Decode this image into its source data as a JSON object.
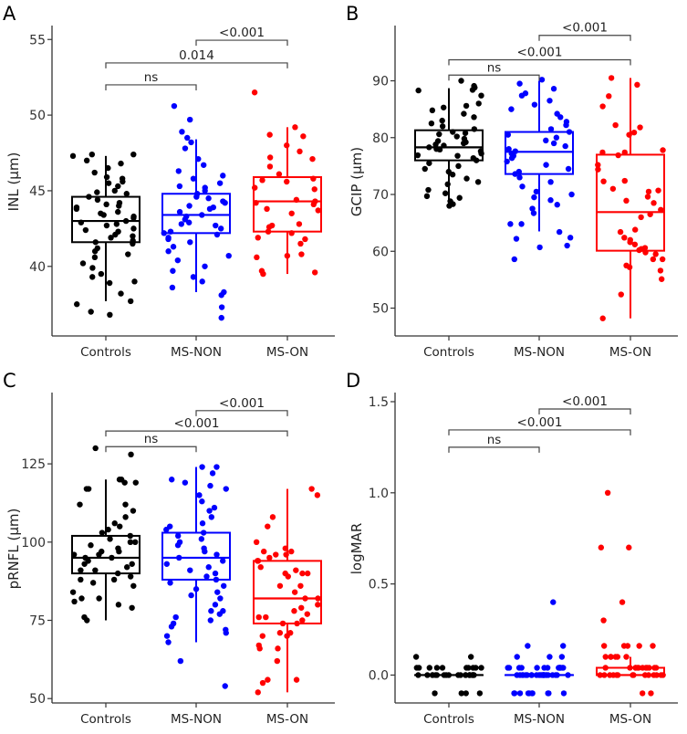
{
  "chart_data": [
    {
      "type": "box",
      "panel_label": "A",
      "ylabel": "INL (µm)",
      "ylim": [
        35.4,
        55.8
      ],
      "yticks": [
        40,
        45,
        50,
        55
      ],
      "tick_labels": [
        "40",
        "45",
        "50",
        "55"
      ],
      "grid": false,
      "categories": [
        "Controls",
        "MS-NON",
        "MS-ON"
      ],
      "colors": [
        "#000000",
        "#0000ff",
        "#ff0000"
      ],
      "boxes": [
        {
          "whisker_low": 37.7,
          "q1": 41.6,
          "median": 43.0,
          "q3": 44.6,
          "whisker_high": 47.3
        },
        {
          "whisker_low": 38.3,
          "q1": 42.2,
          "median": 43.4,
          "q3": 44.8,
          "whisker_high": 48.4
        },
        {
          "whisker_low": 39.5,
          "q1": 42.3,
          "median": 44.3,
          "q3": 45.9,
          "whisker_high": 49.2
        }
      ],
      "points": [
        [
          47.3,
          47.4,
          47.4,
          47.0,
          46.8,
          46.5,
          46.2,
          45.8,
          45.6,
          45.5,
          45.3,
          45.0,
          44.8,
          44.6,
          44.4,
          44.2,
          44.0,
          43.8,
          43.6,
          43.4,
          43.2,
          43.0,
          42.9,
          42.7,
          42.5,
          42.3,
          42.1,
          41.9,
          41.7,
          41.5,
          41.2,
          41.0,
          40.8,
          40.6,
          40.2,
          39.9,
          39.5,
          39.3,
          39.0,
          38.9,
          38.2,
          37.7,
          37.5,
          37.0,
          36.8,
          44.1,
          43.5,
          42.4,
          42.0,
          43.9,
          44.9,
          41.6,
          42.8,
          43.3,
          45.9
        ],
        [
          50.6,
          49.7,
          48.9,
          48.5,
          48.2,
          47.8,
          47.1,
          46.7,
          46.3,
          46.0,
          45.8,
          45.5,
          45.2,
          45.0,
          44.8,
          44.6,
          44.5,
          44.2,
          44.0,
          43.8,
          43.6,
          43.4,
          43.3,
          43.1,
          42.9,
          42.7,
          42.5,
          42.3,
          42.1,
          41.9,
          41.6,
          41.3,
          41.0,
          40.7,
          40.4,
          40.0,
          39.7,
          39.3,
          39.0,
          38.6,
          38.3,
          38.1,
          37.3,
          36.6,
          44.3,
          43.9,
          42.8,
          42.2,
          45.3,
          41.8
        ],
        [
          51.5,
          49.2,
          48.7,
          48.6,
          48.0,
          47.6,
          47.2,
          47.1,
          46.6,
          46.1,
          45.8,
          45.7,
          45.6,
          45.2,
          45.1,
          44.4,
          44.3,
          44.2,
          44.1,
          43.8,
          43.7,
          43.5,
          42.8,
          42.7,
          42.6,
          42.3,
          42.2,
          41.9,
          41.8,
          41.5,
          40.8,
          40.7,
          40.6,
          39.7,
          39.6,
          39.5
        ]
      ],
      "comparisons": [
        {
          "from": "Controls",
          "to": "MS-NON",
          "label": "ns",
          "y": 52.0
        },
        {
          "from": "Controls",
          "to": "MS-ON",
          "label": "0.014",
          "y": 53.45
        },
        {
          "from": "MS-NON",
          "to": "MS-ON",
          "label": "<0.001",
          "y": 54.95
        }
      ]
    },
    {
      "type": "box",
      "panel_label": "B",
      "ylabel": "GCIP (µm)",
      "ylim": [
        45.1,
        99.4
      ],
      "yticks": [
        50,
        60,
        70,
        80,
        90
      ],
      "tick_labels": [
        "50",
        "60",
        "70",
        "80",
        "90"
      ],
      "grid": false,
      "categories": [
        "Controls",
        "MS-NON",
        "MS-ON"
      ],
      "colors": [
        "#000000",
        "#0000ff",
        "#ff0000"
      ],
      "boxes": [
        {
          "whisker_low": 68.8,
          "q1": 76.0,
          "median": 78.3,
          "q3": 81.3,
          "whisker_high": 88.7
        },
        {
          "whisker_low": 63.5,
          "q1": 73.6,
          "median": 77.5,
          "q3": 81.0,
          "whisker_high": 90.0
        },
        {
          "whisker_low": 48.2,
          "q1": 60.1,
          "median": 66.9,
          "q3": 77.0,
          "whisker_high": 90.5
        }
      ],
      "points": [
        [
          90.0,
          88.8,
          88.3,
          89.1,
          88.4,
          87.4,
          86.0,
          85.6,
          85.3,
          84.8,
          84.2,
          83.6,
          83.0,
          82.5,
          82.0,
          81.5,
          81.0,
          80.6,
          80.2,
          79.8,
          79.4,
          79.0,
          78.6,
          78.3,
          78.0,
          77.6,
          77.2,
          76.8,
          76.4,
          76.0,
          75.5,
          75.0,
          74.5,
          74.0,
          73.5,
          72.8,
          72.2,
          71.8,
          70.8,
          70.2,
          69.7,
          69.4,
          68.8,
          68.3,
          68.0,
          79.2,
          77.9,
          80.8,
          76.9,
          78.8
        ],
        [
          90.2,
          89.5,
          88.6,
          87.8,
          87.4,
          86.5,
          85.8,
          85.0,
          84.2,
          83.6,
          82.8,
          82.2,
          81.5,
          81.0,
          80.5,
          80.0,
          79.5,
          79.0,
          78.5,
          78.0,
          77.6,
          77.2,
          76.8,
          76.4,
          75.8,
          75.2,
          74.5,
          74.0,
          73.6,
          73.0,
          72.2,
          71.4,
          70.5,
          70.0,
          69.5,
          69.0,
          68.2,
          67.5,
          66.7,
          64.8,
          64.8,
          63.4,
          62.4,
          62.2,
          61.0,
          60.7,
          58.6
        ],
        [
          90.5,
          89.3,
          87.3,
          85.5,
          82.2,
          81.8,
          80.9,
          80.5,
          77.8,
          77.4,
          77.4,
          76.9,
          75.2,
          74.4,
          72.4,
          72.3,
          71.0,
          70.7,
          70.5,
          69.6,
          68.9,
          68.5,
          67.3,
          66.5,
          66.0,
          63.8,
          63.4,
          62.4,
          62.0,
          61.6,
          61.2,
          60.6,
          60.4,
          60.2,
          59.8,
          59.5,
          58.6,
          58.6,
          57.5,
          57.2,
          56.6,
          55.1,
          52.4,
          48.2
        ]
      ],
      "comparisons": [
        {
          "from": "Controls",
          "to": "MS-NON",
          "label": "ns",
          "y": 91.0
        },
        {
          "from": "Controls",
          "to": "MS-ON",
          "label": "<0.001",
          "y": 93.7
        },
        {
          "from": "MS-NON",
          "to": "MS-ON",
          "label": "<0.001",
          "y": 98.0
        }
      ]
    },
    {
      "type": "box",
      "panel_label": "C",
      "ylabel": "pRNFL (µm)",
      "ylim": [
        48.6,
        147.2
      ],
      "yticks": [
        50,
        75,
        100,
        125
      ],
      "tick_labels": [
        "50",
        "75",
        "100",
        "125"
      ],
      "grid": false,
      "categories": [
        "Controls",
        "MS-NON",
        "MS-ON"
      ],
      "colors": [
        "#000000",
        "#0000ff",
        "#ff0000"
      ],
      "boxes": [
        {
          "whisker_low": 75,
          "q1": 90,
          "median": 95,
          "q3": 102,
          "whisker_high": 120
        },
        {
          "whisker_low": 68,
          "q1": 88,
          "median": 95,
          "q3": 103,
          "whisker_high": 124
        },
        {
          "whisker_low": 52,
          "q1": 74,
          "median": 82,
          "q3": 94,
          "whisker_high": 117
        }
      ],
      "points": [
        [
          130,
          128,
          120,
          120,
          119,
          119,
          117,
          117,
          112,
          112,
          110,
          108,
          106,
          105,
          104,
          103,
          102,
          101,
          100,
          99,
          98,
          97,
          96,
          95,
          95,
          94,
          93,
          92,
          91,
          90,
          89,
          88,
          87,
          86,
          84,
          82,
          82,
          81,
          80,
          79,
          76,
          75,
          100,
          97,
          93,
          91,
          88,
          96
        ],
        [
          124,
          124,
          122,
          120,
          119,
          118,
          117,
          115,
          113,
          111,
          110,
          108,
          106,
          105,
          104,
          103,
          102,
          101,
          100,
          99,
          98,
          97,
          96,
          95,
          94,
          93,
          92,
          91,
          90,
          89,
          88,
          87,
          86,
          85,
          84,
          83,
          82,
          80,
          78,
          78,
          77,
          76,
          75,
          74,
          73,
          72,
          71,
          70,
          68,
          62,
          54
        ],
        [
          117,
          115,
          108,
          105,
          100,
          98,
          97,
          97,
          96,
          96,
          95,
          94,
          94,
          92,
          91,
          90,
          90,
          90,
          89,
          86,
          86,
          84,
          82,
          82,
          80,
          79,
          78,
          77,
          76,
          76,
          75,
          74,
          74,
          71,
          71,
          70,
          70,
          67,
          66,
          66,
          62,
          56,
          56,
          55,
          52
        ]
      ],
      "comparisons": [
        {
          "from": "Controls",
          "to": "MS-NON",
          "label": "ns",
          "y": 130.5
        },
        {
          "from": "Controls",
          "to": "MS-ON",
          "label": "<0.001",
          "y": 135.5
        },
        {
          "from": "MS-NON",
          "to": "MS-ON",
          "label": "<0.001",
          "y": 142.0
        }
      ]
    },
    {
      "type": "box",
      "panel_label": "D",
      "ylabel": "logMAR",
      "ylim": [
        -0.153,
        1.54
      ],
      "yticks": [
        0.0,
        0.5,
        1.0,
        1.5
      ],
      "tick_labels": [
        "0.0",
        "0.5",
        "1.0",
        "1.5"
      ],
      "grid": false,
      "categories": [
        "Controls",
        "MS-NON",
        "MS-ON"
      ],
      "colors": [
        "#000000",
        "#0000ff",
        "#ff0000"
      ],
      "boxes": [
        {
          "whisker_low": 0,
          "q1": 0,
          "median": 0,
          "q3": 0,
          "whisker_high": 0
        },
        {
          "whisker_low": 0,
          "q1": 0,
          "median": 0,
          "q3": 0,
          "whisker_high": 0
        },
        {
          "whisker_low": 0,
          "q1": 0,
          "median": 0,
          "q3": 0.04,
          "whisker_high": 0.1
        }
      ],
      "points": [
        [
          0.1,
          0.1,
          0.04,
          0.04,
          0.04,
          0.04,
          0.04,
          0.04,
          0.04,
          0.04,
          0.04,
          0.04,
          0,
          0,
          0,
          0,
          0,
          0,
          0,
          0,
          0,
          0,
          0,
          0,
          0,
          0,
          0,
          0,
          0,
          0,
          0,
          0,
          -0.1,
          -0.1,
          -0.1,
          -0.1
        ],
        [
          0.4,
          0.16,
          0.16,
          0.1,
          0.1,
          0.1,
          0.04,
          0.04,
          0.04,
          0.04,
          0.04,
          0.04,
          0.04,
          0.04,
          0.04,
          0.04,
          0.04,
          0.04,
          0.04,
          0.04,
          0,
          0,
          0,
          0,
          0,
          0,
          0,
          0,
          0,
          0,
          0,
          0,
          0,
          0,
          0,
          0,
          0,
          0,
          0,
          0,
          0,
          0,
          0,
          0,
          -0.1,
          -0.1,
          -0.1,
          -0.1,
          -0.1,
          -0.1,
          -0.1,
          -0.1,
          -0.1,
          -0.1
        ],
        [
          1.0,
          0.7,
          0.7,
          0.4,
          0.3,
          0.16,
          0.16,
          0.16,
          0.16,
          0.16,
          0.1,
          0.1,
          0.1,
          0.1,
          0.1,
          0.1,
          0.04,
          0.04,
          0.04,
          0.04,
          0.04,
          0.04,
          0.04,
          0.04,
          0.04,
          0.04,
          0.04,
          0.04,
          0,
          0,
          0,
          0,
          0,
          0,
          0,
          0,
          0,
          0,
          0,
          0,
          0,
          0,
          -0.1,
          -0.1
        ]
      ],
      "comparisons": [
        {
          "from": "Controls",
          "to": "MS-NON",
          "label": "ns",
          "y": 1.25
        },
        {
          "from": "Controls",
          "to": "MS-ON",
          "label": "<0.001",
          "y": 1.345
        },
        {
          "from": "MS-NON",
          "to": "MS-ON",
          "label": "<0.001",
          "y": 1.46
        }
      ]
    }
  ]
}
